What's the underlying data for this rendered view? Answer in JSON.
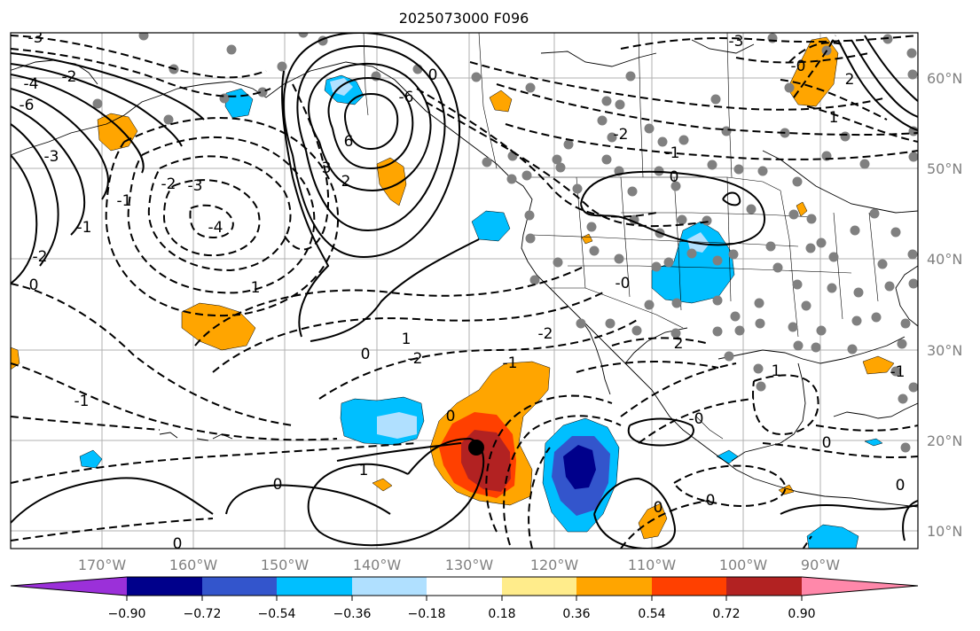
{
  "title": "2025073000 F096",
  "map": {
    "lon_labels": [
      "170°W",
      "160°W",
      "150°W",
      "140°W",
      "130°W",
      "120°W",
      "110°W",
      "100°W",
      "90°W"
    ],
    "lat_labels": [
      "60°N",
      "50°N",
      "40°N",
      "30°N",
      "20°N",
      "10°N"
    ],
    "contour_labels": [
      "-3",
      "-2",
      "-4",
      "-6",
      "-3",
      "-2",
      "-1",
      "0",
      "1",
      "6",
      "2",
      "3",
      "-3",
      "-2",
      "-1",
      "0",
      "-6",
      "-4",
      "-3",
      "-2",
      "-1",
      "0",
      "1",
      "2",
      "0",
      "1",
      "-1",
      "0",
      "0",
      "0",
      "-0",
      "-1",
      "1",
      "0",
      "-2",
      "-0",
      "1",
      "2",
      "-1",
      "0",
      "-2",
      "-0",
      "0",
      "-0"
    ],
    "tropical_cyclone_marker": "storm-center"
  },
  "colorbar": {
    "ticks": [
      "−0.90",
      "−0.72",
      "−0.54",
      "−0.36",
      "−0.18",
      "0.18",
      "0.36",
      "0.54",
      "0.72",
      "0.90"
    ],
    "colors": [
      "#9b30d9",
      "#00008b",
      "#3355cc",
      "#00bfff",
      "#b0e0ff",
      "#ffffff",
      "#ffec8b",
      "#ffa500",
      "#ff4000",
      "#b22222",
      "#ff88aa"
    ]
  }
}
